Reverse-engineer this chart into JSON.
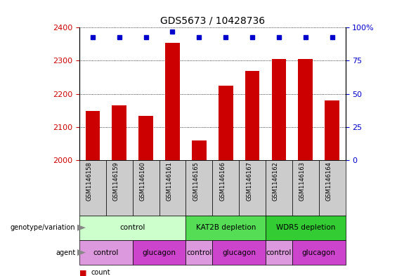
{
  "title": "GDS5673 / 10428736",
  "samples": [
    "GSM1146158",
    "GSM1146159",
    "GSM1146160",
    "GSM1146161",
    "GSM1146165",
    "GSM1146166",
    "GSM1146167",
    "GSM1146162",
    "GSM1146163",
    "GSM1146164"
  ],
  "counts": [
    2148,
    2165,
    2133,
    2355,
    2060,
    2225,
    2270,
    2305,
    2305,
    2180
  ],
  "percentiles": [
    93,
    93,
    93,
    97,
    93,
    93,
    93,
    93,
    93,
    93
  ],
  "ylim_left": [
    2000,
    2400
  ],
  "ylim_right": [
    0,
    100
  ],
  "yticks_left": [
    2000,
    2100,
    2200,
    2300,
    2400
  ],
  "yticks_right": [
    0,
    25,
    50,
    75,
    100
  ],
  "bar_color": "#cc0000",
  "dot_color": "#0000cc",
  "genotype_groups": [
    {
      "label": "control",
      "start": 0,
      "end": 4,
      "color": "#ccffcc"
    },
    {
      "label": "KAT2B depletion",
      "start": 4,
      "end": 7,
      "color": "#55dd55"
    },
    {
      "label": "WDR5 depletion",
      "start": 7,
      "end": 10,
      "color": "#33cc33"
    }
  ],
  "agent_groups": [
    {
      "label": "control",
      "start": 0,
      "end": 2,
      "color": "#dd99dd"
    },
    {
      "label": "glucagon",
      "start": 2,
      "end": 4,
      "color": "#cc44cc"
    },
    {
      "label": "control",
      "start": 4,
      "end": 5,
      "color": "#dd99dd"
    },
    {
      "label": "glucagon",
      "start": 5,
      "end": 7,
      "color": "#cc44cc"
    },
    {
      "label": "control",
      "start": 7,
      "end": 8,
      "color": "#dd99dd"
    },
    {
      "label": "glucagon",
      "start": 8,
      "end": 10,
      "color": "#cc44cc"
    }
  ],
  "sample_box_color": "#cccccc",
  "legend_count_color": "#cc0000",
  "legend_percentile_color": "#0000cc",
  "background_color": "#ffffff",
  "label_arrow_color": "#888888"
}
